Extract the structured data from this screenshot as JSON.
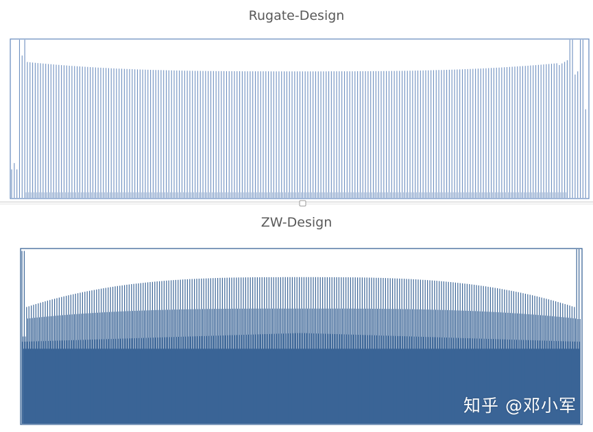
{
  "chart_data": [
    {
      "type": "bar",
      "title": "Rugate-Design",
      "xlabel": "",
      "ylabel": "",
      "grid": false,
      "legend": "none",
      "color": "#6c8ebf",
      "description_values": {
        "edge_left_profile": [
          0.2,
          0.18,
          0.22,
          1.0,
          0.9,
          1.0,
          0.85,
          0.88,
          1.0,
          0.86
        ],
        "main_level": 0.8,
        "mid_level": 0.8,
        "low_level": 0.03,
        "edge_right_profile": [
          0.84,
          0.85,
          0.86,
          0.87,
          1.0,
          1.0,
          0.78,
          0.8,
          1.0,
          0.56
        ]
      }
    },
    {
      "type": "bar",
      "title": "ZW-Design",
      "xlabel": "",
      "ylabel": "",
      "grid": false,
      "legend": "none",
      "color": "#3a6496",
      "description_values": {
        "peak_edge_level": 0.76,
        "peak_mid_level": 0.84,
        "secondary_level": 0.66,
        "dense_level": 0.42,
        "edge_high": 1.0
      }
    }
  ],
  "watermark": "知乎 @邓小军"
}
